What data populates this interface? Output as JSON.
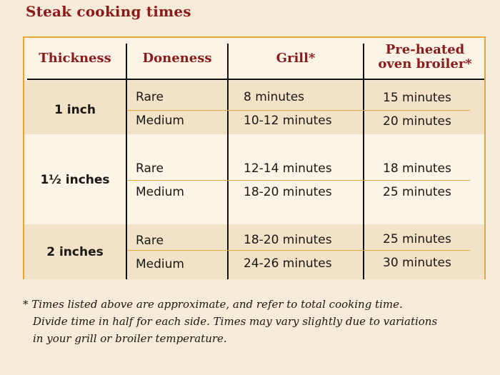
{
  "title": "Steak cooking times",
  "table": {
    "headers": {
      "thickness": "Thickness",
      "doneness": "Doneness",
      "grill": "Grill*",
      "broiler_line1": "Pre-heated",
      "broiler_line2": "oven broiler*"
    },
    "groups": [
      {
        "thickness": "1 inch",
        "rows": [
          {
            "doneness": "Rare",
            "grill": "8 minutes",
            "broiler": "15 minutes"
          },
          {
            "doneness": "Medium",
            "grill": "10-12 minutes",
            "broiler": "20 minutes"
          }
        ]
      },
      {
        "thickness": "1½ inches",
        "rows": [
          {
            "doneness": "Rare",
            "grill": "12-14 minutes",
            "broiler": "18 minutes"
          },
          {
            "doneness": "Medium",
            "grill": "18-20 minutes",
            "broiler": "25 minutes"
          }
        ]
      },
      {
        "thickness": "2 inches",
        "rows": [
          {
            "doneness": "Rare",
            "grill": "18-20 minutes",
            "broiler": "25 minutes"
          },
          {
            "doneness": "Medium",
            "grill": "24-26 minutes",
            "broiler": "30 minutes"
          }
        ]
      }
    ]
  },
  "footnote": {
    "line1": "* Times listed above are approximate, and refer to total cooking time.",
    "line2": "Divide time in half for each side. Times may vary slightly due to variations",
    "line3": "in your grill or broiler temperature."
  },
  "colors": {
    "title": "#8b1a1a",
    "border": "#e3a536",
    "background": "#f6ead8"
  }
}
